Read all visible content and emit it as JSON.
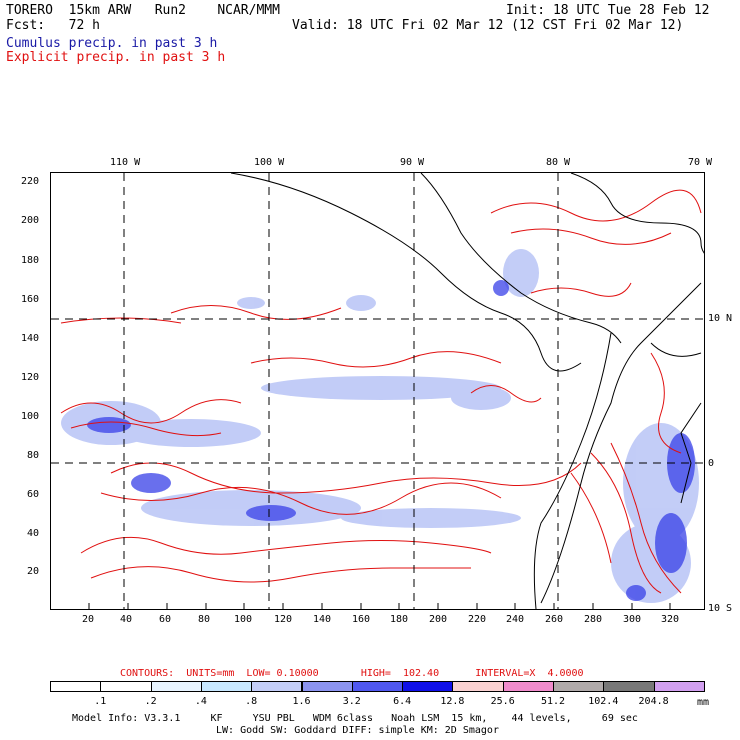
{
  "header": {
    "line1_left": "TORERO  15km ARW   Run2    NCAR/MMM",
    "line1_right": "Init: 18 UTC Tue 28 Feb 12",
    "line2_left": "Fcst:   72 h",
    "line2_right": "Valid: 18 UTC Fri 02 Mar 12 (12 CST Fri 02 Mar 12)",
    "cumulus": "Cumulus precip. in past 3 h",
    "explicit": "Explicit precip. in past 3 h"
  },
  "map": {
    "lon_labels": [
      "110 W",
      "100 W",
      "90 W",
      "80 W",
      "70 W"
    ],
    "lat_labels": [
      "10 N",
      "0",
      "10 S"
    ],
    "x_ticks": [
      "20",
      "40",
      "60",
      "80",
      "100",
      "120",
      "140",
      "160",
      "180",
      "200",
      "220",
      "240",
      "260",
      "280",
      "300",
      "320"
    ],
    "y_ticks": [
      "20",
      "40",
      "60",
      "80",
      "100",
      "120",
      "140",
      "160",
      "180",
      "200",
      "220"
    ],
    "colors": {
      "contour": "#e01010",
      "coast": "#000000",
      "grid": "#000000"
    }
  },
  "contours_info": {
    "label": "CONTOURS:  UNITS=mm  LOW= 0.10000       HIGH=  102.40      INTERVAL=X  4.0000"
  },
  "legend": {
    "values": [
      ".1",
      ".2",
      ".4",
      ".8",
      "1.6",
      "3.2",
      "6.4",
      "12.8",
      "25.6",
      "51.2",
      "102.4",
      "204.8"
    ],
    "units": "mm",
    "colors": [
      "#ffffff",
      "#ffffff",
      "#e8f4ff",
      "#c8e8ff",
      "#c4cef8",
      "#8c94f0",
      "#5058f0",
      "#1010e8",
      "#fad2d2",
      "#f08ccc",
      "#b0aaaa",
      "#787878",
      "#d2a0f0"
    ]
  },
  "model_info": {
    "line1": "Model Info: V3.3.1     KF     YSU PBL   WDM 6class   Noah LSM  15 km,    44 levels,     69 sec",
    "line2": "LW: Godd SW: Goddard DIFF: simple KM: 2D Smagor"
  }
}
